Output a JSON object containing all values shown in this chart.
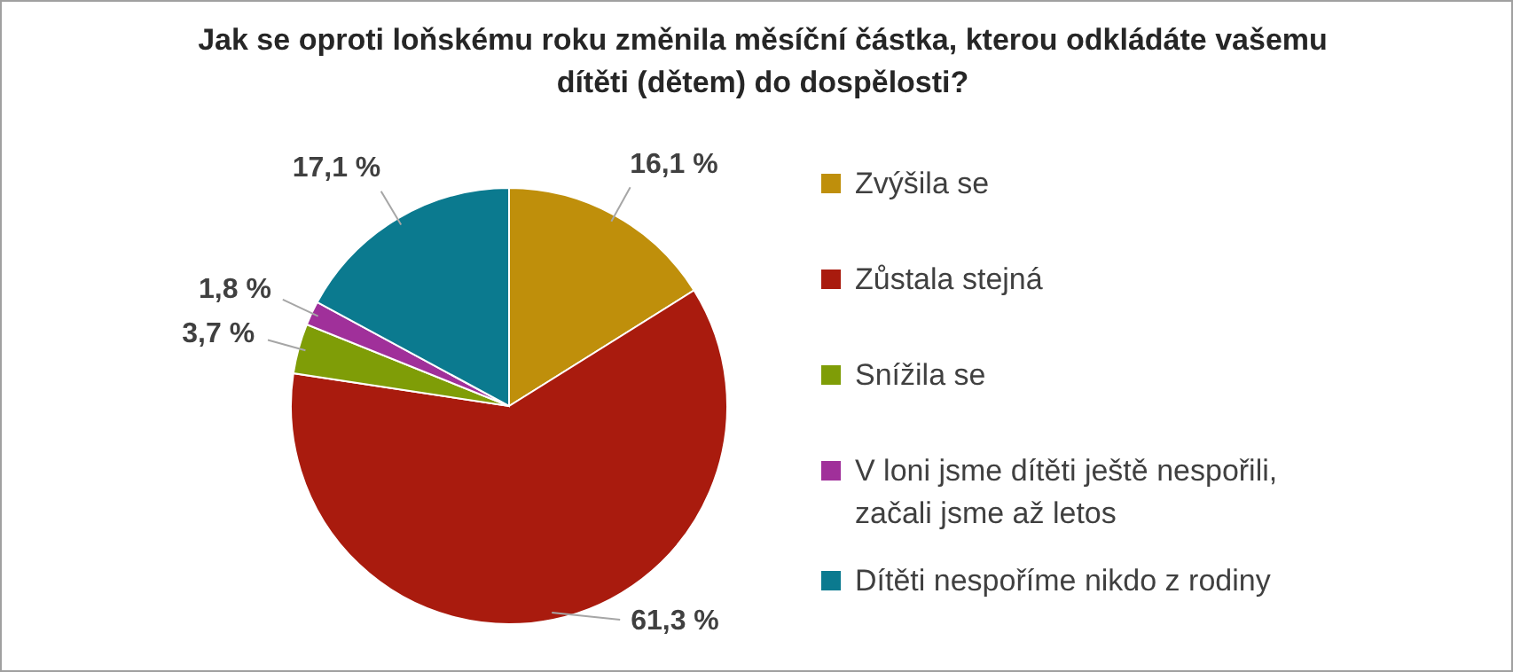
{
  "chart_data": {
    "type": "pie",
    "title": "Jak se oproti loňskému roku změnila měsíční částka, kterou odkládáte vašemu dítěti (dětem) do dospělosti?",
    "categories": [
      "Zvýšila se",
      "Zůstala stejná",
      "Snížila se",
      "V loni jsme dítěti ještě nespořili, začali jsme až letos",
      "Dítěti nespoříme nikdo z rodiny"
    ],
    "values": [
      16.1,
      61.3,
      3.7,
      1.8,
      17.1
    ],
    "value_labels": [
      "16,1 %",
      "61,3 %",
      "3,7 %",
      "1,8 %",
      "17,1 %"
    ],
    "colors": [
      "#bf8f0b",
      "#a91b0e",
      "#7f9d07",
      "#a0309a",
      "#0b7a8f"
    ],
    "legend": "right"
  }
}
